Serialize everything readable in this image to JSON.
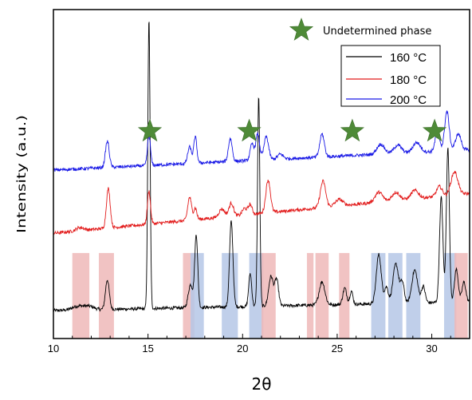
{
  "chart_data": {
    "type": "line",
    "xlabel": "2θ",
    "ylabel": "Intensity (a.u.)",
    "xlim": [
      10,
      32
    ],
    "xticks": [
      "10",
      "15",
      "20",
      "25",
      "30"
    ],
    "ylim": [
      0,
      100
    ],
    "yticks_shown": false,
    "grid": false,
    "legend_position": "top-right",
    "series": [
      {
        "name": "160 °C",
        "color": "#000000",
        "baseline": 8.5,
        "slope": 0.12,
        "noise": 0.5,
        "peaks": [
          [
            11.3,
            1.2,
            0.3
          ],
          [
            11.9,
            1.0,
            0.25
          ],
          [
            12.85,
            9.0,
            0.1
          ],
          [
            15.05,
            88.0,
            0.06
          ],
          [
            17.25,
            7.0,
            0.12
          ],
          [
            17.55,
            22.0,
            0.08
          ],
          [
            19.4,
            26.0,
            0.09
          ],
          [
            20.4,
            10.0,
            0.08
          ],
          [
            20.85,
            64.0,
            0.06
          ],
          [
            21.5,
            9.0,
            0.12
          ],
          [
            21.8,
            8.0,
            0.1
          ],
          [
            24.2,
            7.0,
            0.15
          ],
          [
            25.4,
            5.0,
            0.1
          ],
          [
            25.75,
            4.0,
            0.08
          ],
          [
            27.2,
            15.0,
            0.13
          ],
          [
            27.6,
            5.0,
            0.1
          ],
          [
            28.1,
            12.0,
            0.15
          ],
          [
            28.45,
            6.0,
            0.1
          ],
          [
            29.1,
            10.0,
            0.15
          ],
          [
            29.55,
            5.0,
            0.1
          ],
          [
            30.5,
            32.0,
            0.09
          ],
          [
            30.85,
            47.0,
            0.08
          ],
          [
            31.3,
            10.0,
            0.1
          ],
          [
            31.7,
            6.0,
            0.1
          ]
        ]
      },
      {
        "name": "180 °C",
        "color": "#e21b1b",
        "baseline": 32.0,
        "slope": 0.55,
        "noise": 0.5,
        "peaks": [
          [
            11.4,
            1.0,
            0.2
          ],
          [
            12.9,
            12.0,
            0.1
          ],
          [
            15.05,
            10.0,
            0.08
          ],
          [
            17.2,
            7.0,
            0.1
          ],
          [
            17.5,
            3.5,
            0.08
          ],
          [
            18.9,
            2.5,
            0.15
          ],
          [
            19.4,
            4.0,
            0.12
          ],
          [
            20.1,
            2.0,
            0.12
          ],
          [
            20.4,
            3.0,
            0.1
          ],
          [
            21.35,
            10.0,
            0.12
          ],
          [
            24.25,
            8.0,
            0.14
          ],
          [
            25.1,
            2.0,
            0.2
          ],
          [
            27.2,
            3.0,
            0.2
          ],
          [
            28.1,
            2.5,
            0.2
          ],
          [
            29.1,
            2.5,
            0.2
          ],
          [
            30.4,
            3.0,
            0.15
          ],
          [
            31.2,
            7.0,
            0.18
          ]
        ]
      },
      {
        "name": "200 °C",
        "color": "#1a1ae6",
        "baseline": 51.2,
        "slope": 0.28,
        "noise": 0.5,
        "peaks": [
          [
            12.85,
            8.0,
            0.1
          ],
          [
            15.05,
            9.0,
            0.08
          ],
          [
            17.2,
            5.0,
            0.1
          ],
          [
            17.5,
            8.0,
            0.08
          ],
          [
            19.35,
            7.0,
            0.1
          ],
          [
            20.5,
            5.0,
            0.1
          ],
          [
            20.8,
            8.0,
            0.1
          ],
          [
            21.25,
            7.0,
            0.12
          ],
          [
            22.0,
            1.5,
            0.15
          ],
          [
            24.2,
            7.0,
            0.12
          ],
          [
            27.3,
            3.0,
            0.2
          ],
          [
            28.2,
            2.5,
            0.2
          ],
          [
            29.2,
            3.0,
            0.2
          ],
          [
            30.3,
            6.0,
            0.12
          ],
          [
            30.8,
            12.0,
            0.12
          ],
          [
            31.4,
            5.0,
            0.15
          ]
        ]
      }
    ],
    "bands": [
      {
        "from": 11.0,
        "to": 11.9,
        "color": "red"
      },
      {
        "from": 12.4,
        "to": 13.2,
        "color": "red"
      },
      {
        "from": 16.85,
        "to": 17.45,
        "color": "red"
      },
      {
        "from": 17.25,
        "to": 17.95,
        "color": "blue"
      },
      {
        "from": 18.9,
        "to": 19.75,
        "color": "blue"
      },
      {
        "from": 20.35,
        "to": 21.1,
        "color": "blue"
      },
      {
        "from": 21.0,
        "to": 21.75,
        "color": "red"
      },
      {
        "from": 23.4,
        "to": 23.75,
        "color": "red"
      },
      {
        "from": 23.85,
        "to": 24.55,
        "color": "red"
      },
      {
        "from": 25.1,
        "to": 25.65,
        "color": "red"
      },
      {
        "from": 26.8,
        "to": 27.55,
        "color": "blue"
      },
      {
        "from": 27.7,
        "to": 28.45,
        "color": "blue"
      },
      {
        "from": 28.65,
        "to": 29.4,
        "color": "blue"
      },
      {
        "from": 30.65,
        "to": 31.3,
        "color": "blue"
      },
      {
        "from": 31.2,
        "to": 31.9,
        "color": "red"
      }
    ],
    "band_colors": {
      "red": "#efb8b8",
      "blue": "#b5c7e6"
    },
    "markers": {
      "symbol": "star",
      "color": "#4e8a37",
      "x": [
        15.1,
        20.35,
        25.8,
        30.15
      ],
      "y": 63,
      "legend_label": "Undetermined phase",
      "legend_position": "top-right"
    }
  }
}
